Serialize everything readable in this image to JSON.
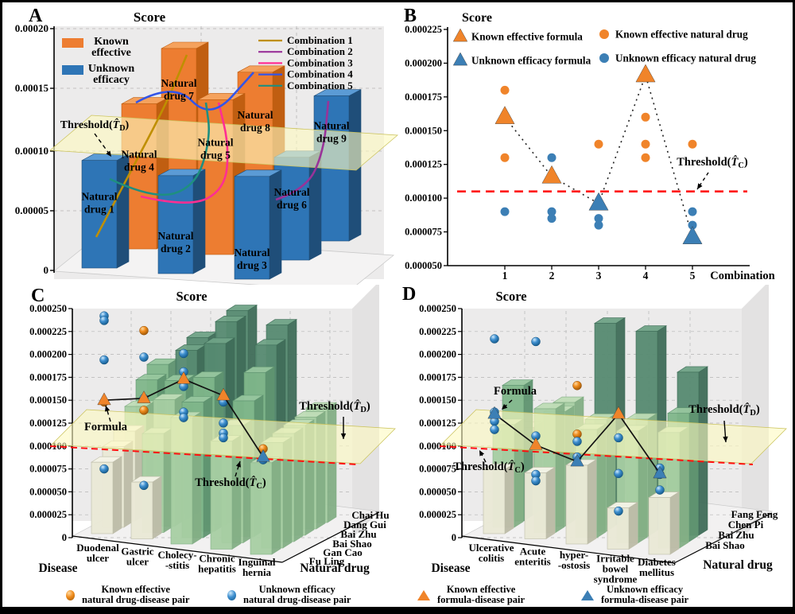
{
  "colors": {
    "known": "#ED7D31",
    "unknown": "#2E75B6",
    "known_side": "#C05E11",
    "unknown_side": "#1F4E79",
    "known_top": "#F5A25D",
    "unknown_top": "#5B9BD5",
    "threshold_red": "#FF1010",
    "plane_yellow": "#FDFAC0",
    "disease_red": "#FF0000",
    "drug_cyan": "#00B0F0",
    "wall_gray": "#ECEBEB",
    "grid_gray": "#B5B5B5"
  },
  "bottom_legend": [
    {
      "icon": "sphere-orange",
      "lines": [
        "Known effective",
        "natural drug-disease pair"
      ]
    },
    {
      "icon": "sphere-blue",
      "lines": [
        "Unknown efficacy",
        "natural drug-disease pair"
      ]
    },
    {
      "icon": "triangle-orange",
      "lines": [
        "Known effective",
        "formula-disease pair"
      ]
    },
    {
      "icon": "triangle-blue",
      "lines": [
        "Unknown efficacy",
        "formula-disease pair"
      ]
    }
  ],
  "chart_data": [
    {
      "panel": "A",
      "type": "bar3d",
      "title": "Score",
      "ylim": [
        0,
        0.0002
      ],
      "ytick_labels": [
        "0",
        "0.00005",
        "0.00010",
        "0.00015",
        "0.00020"
      ],
      "bar_legend": [
        {
          "label_lines": [
            "Known",
            "effective"
          ],
          "key": "known"
        },
        {
          "label_lines": [
            "Unknown",
            "efficacy"
          ],
          "key": "unknown"
        }
      ],
      "combination_legend": [
        {
          "label": "Combination 1",
          "color": "#BF8F00"
        },
        {
          "label": "Combination 2",
          "color": "#993399"
        },
        {
          "label": "Combination 3",
          "color": "#FF2E92"
        },
        {
          "label": "Combination 4",
          "color": "#3355E8"
        },
        {
          "label": "Combination 5",
          "color": "#1F8F80"
        }
      ],
      "threshold": {
        "prefix": "Threshold(",
        "symbol": "T",
        "subscript": "D",
        "suffix": ")",
        "value": 0.0001
      },
      "bars": [
        {
          "label_lines": [
            "Natural",
            "drug 1"
          ],
          "value": 8.9e-05,
          "status": "unknown",
          "row": 0,
          "col": 0
        },
        {
          "label_lines": [
            "Natural",
            "drug 2"
          ],
          "value": 8.1e-05,
          "status": "unknown",
          "row": 0,
          "col": 1
        },
        {
          "label_lines": [
            "Natural",
            "drug 3"
          ],
          "value": 8.5e-05,
          "status": "unknown",
          "row": 0,
          "col": 2
        },
        {
          "label_lines": [
            "Natural",
            "drug 4"
          ],
          "value": 0.00012,
          "status": "known",
          "row": 1,
          "col": 0
        },
        {
          "label_lines": [
            "Natural",
            "drug 5"
          ],
          "value": 0.000128,
          "status": "known",
          "row": 1,
          "col": 1
        },
        {
          "label_lines": [
            "Natural",
            "drug 6"
          ],
          "value": 8.5e-05,
          "status": "unknown",
          "row": 1,
          "col": 2
        },
        {
          "label_lines": [
            "Natural",
            "drug 7"
          ],
          "value": 0.00015,
          "status": "known",
          "row": 2,
          "col": 0
        },
        {
          "label_lines": [
            "Natural",
            "drug 8"
          ],
          "value": 0.000135,
          "status": "known",
          "row": 2,
          "col": 1
        },
        {
          "label_lines": [
            "Natural",
            "drug 9"
          ],
          "value": 0.00012,
          "status": "unknown",
          "row": 2,
          "col": 2
        }
      ]
    },
    {
      "panel": "B",
      "type": "scatter",
      "title": "Score",
      "xlabel": "Combination",
      "ylim": [
        5e-05,
        0.000225
      ],
      "ytick_labels": [
        "0.000050",
        "0.000075",
        "0.000100",
        "0.000125",
        "0.000150",
        "0.000175",
        "0.000200",
        "0.000225"
      ],
      "xtick_labels": [
        "1",
        "2",
        "3",
        "4",
        "5"
      ],
      "legend": [
        {
          "marker": "triangle",
          "key": "known",
          "label": "Known effective formula"
        },
        {
          "marker": "circle",
          "key": "known",
          "label": "Known effective natural drug"
        },
        {
          "marker": "triangle",
          "key": "unknown",
          "label": "Unknown efficacy formula"
        },
        {
          "marker": "circle",
          "key": "unknown",
          "label": "Unknown efficacy natural drug"
        }
      ],
      "threshold": {
        "prefix": "Threshold(",
        "symbol": "T",
        "subscript": "C",
        "suffix": ")",
        "value": 0.000105
      },
      "points": {
        "known_formula": [
          [
            1,
            0.00016
          ],
          [
            2,
            0.000116
          ],
          [
            4,
            0.000191
          ]
        ],
        "unknown_formula": [
          [
            3,
            9.6e-05
          ],
          [
            5,
            7.1e-05
          ]
        ],
        "known_drug": [
          [
            1,
            0.00018
          ],
          [
            1,
            0.00013
          ],
          [
            3,
            0.00014
          ],
          [
            4,
            0.00016
          ],
          [
            4,
            0.00014
          ],
          [
            4,
            0.00013
          ],
          [
            5,
            0.00014
          ]
        ],
        "unknown_drug": [
          [
            1,
            9e-05
          ],
          [
            2,
            0.00013
          ],
          [
            2,
            9e-05
          ],
          [
            2,
            8.5e-05
          ],
          [
            3,
            8.5e-05
          ],
          [
            3,
            8e-05
          ],
          [
            5,
            9e-05
          ],
          [
            5,
            8e-05
          ]
        ]
      },
      "formula_line": [
        [
          1,
          0.00016
        ],
        [
          2,
          0.000116
        ],
        [
          3,
          9.6e-05
        ],
        [
          4,
          0.000191
        ],
        [
          5,
          7.1e-05
        ]
      ]
    },
    {
      "panel": "C",
      "type": "bar3d-grid",
      "title": "Score",
      "ylim": [
        0,
        0.00025
      ],
      "ytick_labels": [
        "0",
        "0.000025",
        "0.000050",
        "0.000075",
        "0.000100",
        "0.000125",
        "0.000150",
        "0.000175",
        "0.000200",
        "0.000225",
        "0.000250"
      ],
      "axis_titles": {
        "disease": "Disease",
        "drug": "Natural drug"
      },
      "diseases": [
        [
          "Duodenal",
          "ulcer"
        ],
        [
          "Gastric",
          "ulcer"
        ],
        [
          "Cholecy-",
          "-stitis"
        ],
        [
          "Chronic",
          "hepatitis"
        ],
        [
          "Inguinal",
          "hernia"
        ]
      ],
      "drugs": [
        "Chai Hu",
        "Dang Gui",
        "Bai Zhu",
        "Bai Shao",
        "Gan Cao",
        "Fu Ling"
      ],
      "bar_rows": [
        {
          "drug": "Chai Hu",
          "values": [
            0.00015,
            0.000185,
            0.00022,
            0.00021,
            0.000125
          ]
        },
        {
          "drug": "Dang Gui",
          "values": [
            0.00014,
            0.000178,
            0.000215,
            0.000195,
            0.000122
          ]
        },
        {
          "drug": "Bai Zhu",
          "values": [
            0.000118,
            0.000152,
            0.000198,
            0.000172,
            0.00012
          ]
        },
        {
          "drug": "Bai Shao",
          "values": [
            9.8e-05,
            0.000138,
            0.000168,
            0.000148,
            0.000118
          ]
        },
        {
          "drug": "Gan Cao",
          "values": [
            8.8e-05,
            0.000108,
            0.000148,
            0.000128,
            0.000115
          ]
        },
        {
          "drug": "Fu Ling",
          "values": [
            7.8e-05,
            6.2e-05,
            0.000138,
            0.000118,
            0.0001
          ]
        }
      ],
      "spheres": [
        {
          "disease": 0,
          "value": 0.000242,
          "kind": "unknown"
        },
        {
          "disease": 0,
          "value": 0.000237,
          "kind": "unknown"
        },
        {
          "disease": 0,
          "value": 0.000194,
          "kind": "unknown"
        },
        {
          "disease": 0,
          "value": 0.000148,
          "kind": "known"
        },
        {
          "disease": 0,
          "value": 7.5e-05,
          "kind": "unknown"
        },
        {
          "disease": 1,
          "value": 0.000226,
          "kind": "known"
        },
        {
          "disease": 1,
          "value": 0.000197,
          "kind": "unknown"
        },
        {
          "disease": 1,
          "value": 0.000152,
          "kind": "unknown"
        },
        {
          "disease": 1,
          "value": 0.000139,
          "kind": "known"
        },
        {
          "disease": 1,
          "value": 5.7e-05,
          "kind": "unknown"
        },
        {
          "disease": 2,
          "value": 0.000201,
          "kind": "unknown"
        },
        {
          "disease": 2,
          "value": 0.000181,
          "kind": "unknown"
        },
        {
          "disease": 2,
          "value": 0.000165,
          "kind": "unknown"
        },
        {
          "disease": 2,
          "value": 0.000137,
          "kind": "unknown"
        },
        {
          "disease": 2,
          "value": 0.000131,
          "kind": "unknown"
        },
        {
          "disease": 3,
          "value": 0.000148,
          "kind": "unknown"
        },
        {
          "disease": 3,
          "value": 0.000125,
          "kind": "unknown"
        },
        {
          "disease": 3,
          "value": 0.000114,
          "kind": "unknown"
        },
        {
          "disease": 3,
          "value": 0.000109,
          "kind": "unknown"
        },
        {
          "disease": 4,
          "value": 9.7e-05,
          "kind": "known"
        },
        {
          "disease": 4,
          "value": 8.5e-05,
          "kind": "unknown"
        }
      ],
      "formula_line": {
        "label": "Formula",
        "values": [
          0.00015,
          0.000152,
          0.000173,
          0.000155,
          8.8e-05
        ],
        "markers": [
          "known",
          "known",
          "known",
          "known",
          "unknown"
        ]
      },
      "thresholds": {
        "plane": {
          "prefix": "Threshold(",
          "symbol": "T",
          "subscript": "D",
          "suffix": ")",
          "value": 0.000103
        },
        "line": {
          "prefix": "Threshold(",
          "symbol": "T",
          "subscript": "C",
          "suffix": ")",
          "value": 0.0001
        }
      }
    },
    {
      "panel": "D",
      "type": "bar3d-grid",
      "title": "Score",
      "ylim": [
        0,
        0.00025
      ],
      "ytick_labels": [
        "0",
        "0.000025",
        "0.000050",
        "0.000075",
        "0.000100",
        "0.000125",
        "0.000150",
        "0.000175",
        "0.000200",
        "0.000225",
        "0.000250"
      ],
      "axis_titles": {
        "disease": "Disease",
        "drug": "Natural drug"
      },
      "diseases": [
        [
          "Ulcerative",
          "colitis"
        ],
        [
          "Acute",
          "enteritis"
        ],
        [
          "hyper-",
          "-ostosis"
        ],
        [
          "Irritable",
          "bowel",
          "syndrome"
        ],
        [
          "Diabetes",
          "mellitus"
        ]
      ],
      "drugs": [
        "Fang Feng",
        "Chen Pi",
        "Bai Zhu",
        "Bai Shao"
      ],
      "bar_rows": [
        {
          "drug": "Fang Feng",
          "values": [
            9.5e-05,
            0.000128,
            0.00022,
            0.000217,
            0.000178
          ]
        },
        {
          "drug": "Chen Pi",
          "values": [
            0.000148,
            0.000125,
            0.000122,
            0.000128,
            0.00014
          ]
        },
        {
          "drug": "Bai Zhu",
          "values": [
            0.000112,
            0.000135,
            0.000118,
            0.000122,
            0.000126
          ]
        },
        {
          "drug": "Bai Shao",
          "values": [
            7e-05,
            7.2e-05,
            8.6e-05,
            4.5e-05,
            6.2e-05
          ]
        }
      ],
      "spheres": [
        {
          "disease": 0,
          "value": 0.000217,
          "kind": "unknown"
        },
        {
          "disease": 0,
          "value": 0.000137,
          "kind": "unknown"
        },
        {
          "disease": 0,
          "value": 0.000127,
          "kind": "unknown"
        },
        {
          "disease": 0,
          "value": 0.000118,
          "kind": "unknown"
        },
        {
          "disease": 1,
          "value": 0.000214,
          "kind": "unknown"
        },
        {
          "disease": 1,
          "value": 0.000111,
          "kind": "unknown"
        },
        {
          "disease": 1,
          "value": 6.9e-05,
          "kind": "unknown"
        },
        {
          "disease": 1,
          "value": 6.2e-05,
          "kind": "unknown"
        },
        {
          "disease": 2,
          "value": 0.000166,
          "kind": "known"
        },
        {
          "disease": 2,
          "value": 0.000113,
          "kind": "known"
        },
        {
          "disease": 2,
          "value": 0.000105,
          "kind": "unknown"
        },
        {
          "disease": 2,
          "value": 8.8e-05,
          "kind": "unknown"
        },
        {
          "disease": 3,
          "value": 0.000109,
          "kind": "unknown"
        },
        {
          "disease": 3,
          "value": 7e-05,
          "kind": "unknown"
        },
        {
          "disease": 3,
          "value": 2.9e-05,
          "kind": "unknown"
        },
        {
          "disease": 4,
          "value": 7.6e-05,
          "kind": "unknown"
        },
        {
          "disease": 4,
          "value": 6.9e-05,
          "kind": "unknown"
        },
        {
          "disease": 4,
          "value": 5.2e-05,
          "kind": "unknown"
        }
      ],
      "formula_line": {
        "label": "Formula",
        "values": [
          0.000135,
          0.000101,
          8.3e-05,
          0.000135,
          7e-05
        ],
        "markers": [
          "unknown",
          "known",
          "unknown",
          "known",
          "unknown"
        ]
      },
      "thresholds": {
        "plane": {
          "prefix": "Threshold(",
          "symbol": "T",
          "subscript": "D",
          "suffix": ")",
          "value": 0.000103
        },
        "line": {
          "prefix": "Threshold(",
          "symbol": "T",
          "subscript": "C",
          "suffix": ")",
          "value": 0.0001
        }
      }
    }
  ]
}
